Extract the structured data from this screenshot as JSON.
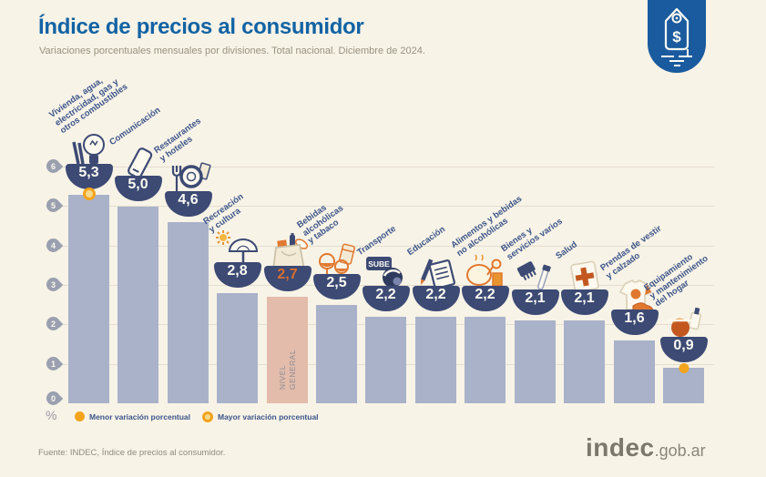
{
  "header": {
    "title": "Índice de precios al consumidor",
    "subtitle": "Variaciones porcentuales mensuales por divisiones. Total nacional. Diciembre de 2024.",
    "badge_icon": "price-tag-icon",
    "badge_color": "#1a5a9e"
  },
  "chart_data": {
    "type": "bar",
    "title": "Índice de precios al consumidor",
    "subtitle": "Variaciones porcentuales mensuales por divisiones. Total nacional. Diciembre de 2024.",
    "unit": "%",
    "ylim": [
      0,
      6
    ],
    "yticks": [
      "6",
      "5",
      "4",
      "3",
      "2",
      "1",
      "0"
    ],
    "grid": true,
    "categories": [
      "Vivienda, agua,\nelectricidad, gas y\notros combustibles",
      "Comunicación",
      "Restaurantes\ny hoteles",
      "Recreación\ny cultura",
      "Nivel general",
      "Bebidas\nalcohólicas\ny tabaco",
      "Transporte",
      "Educación",
      "Alimentos y bebidas\nno alcohólicas",
      "Bienes y\nservicios varios",
      "Salud",
      "Prendas de vestir\ny calzado",
      "Equipamiento\ny mantenimiento\ndel hogar"
    ],
    "values": [
      5.3,
      5.0,
      4.6,
      2.8,
      2.7,
      2.5,
      2.2,
      2.2,
      2.2,
      2.1,
      2.1,
      1.6,
      0.9
    ],
    "value_labels": [
      "5,3",
      "5,0",
      "4,6",
      "2,8",
      "2,7",
      "2,5",
      "2,2",
      "2,2",
      "2,2",
      "2,1",
      "2,1",
      "1,6",
      "0,9"
    ],
    "icons": [
      "housing-utilities-icon",
      "communication-icon",
      "restaurants-hotels-icon",
      "recreation-culture-icon",
      "general-level-basket-icon",
      "alcohol-tobacco-icon",
      "transport-sube-icon",
      "education-icon",
      "food-beverages-icon",
      "misc-goods-services-icon",
      "health-icon",
      "clothing-footwear-icon",
      "home-equipment-icon"
    ],
    "transport_card_label": "SUBE",
    "bar_color": "#a9b2c9",
    "bowl_color": "#3c4a74",
    "highlight": {
      "index": 4,
      "label": "NIVEL\nGENERAL",
      "bar_color": "#e3bcab",
      "value_color": "#d96e2d"
    },
    "markers": {
      "max": {
        "index": 0,
        "style": "ring",
        "color": "#f2a41d"
      },
      "min": {
        "index": 12,
        "style": "solid",
        "color": "#f2a41d"
      }
    }
  },
  "legend": {
    "min_label": "Menor variación porcentual",
    "max_label": "Mayor variación porcentual"
  },
  "footer": {
    "source": "Fuente: INDEC, Índice de precios al consumidor.",
    "logo_main": "indec",
    "logo_suffix": ".gob.ar"
  }
}
